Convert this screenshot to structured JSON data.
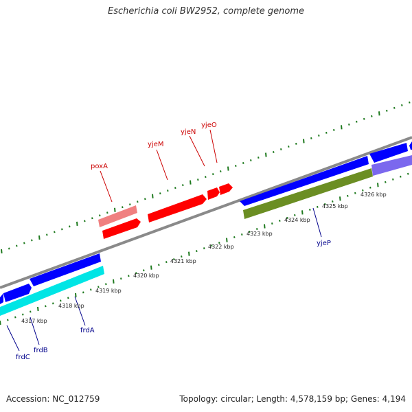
{
  "title": "Escherichia coli BW2952, complete genome",
  "footer": {
    "accession": "Accession: NC_012759",
    "summary": "Topology: circular; Length: 4,578,159 bp; Genes: 4,194"
  },
  "colors": {
    "backbone": "#8a8a8a",
    "ticks": "#1f7a1f",
    "forward_label": "#cc0000",
    "reverse_label": "#00008b",
    "red_gene": "#ff0000",
    "pink_gene": "#f08080",
    "blue_gene": "#0000ff",
    "cyan_gene": "#00e5e5",
    "olive_gene": "#6b8e23",
    "lavender_gene": "#7b68ee"
  },
  "ruler": {
    "unit": "kbp",
    "labels": [
      "4317 kbp",
      "4318 kbp",
      "4319 kbp",
      "4320 kbp",
      "4321 kbp",
      "4322 kbp",
      "4323 kbp",
      "4324 kbp",
      "4325 kbp",
      "4326 kbp"
    ]
  },
  "genes_forward": [
    {
      "name": "poxA"
    },
    {
      "name": "yjeM"
    },
    {
      "name": "yjeN"
    },
    {
      "name": "yjeO"
    }
  ],
  "genes_reverse": [
    {
      "name": "frdC"
    },
    {
      "name": "frdB"
    },
    {
      "name": "frdA"
    },
    {
      "name": "yjeP"
    }
  ]
}
